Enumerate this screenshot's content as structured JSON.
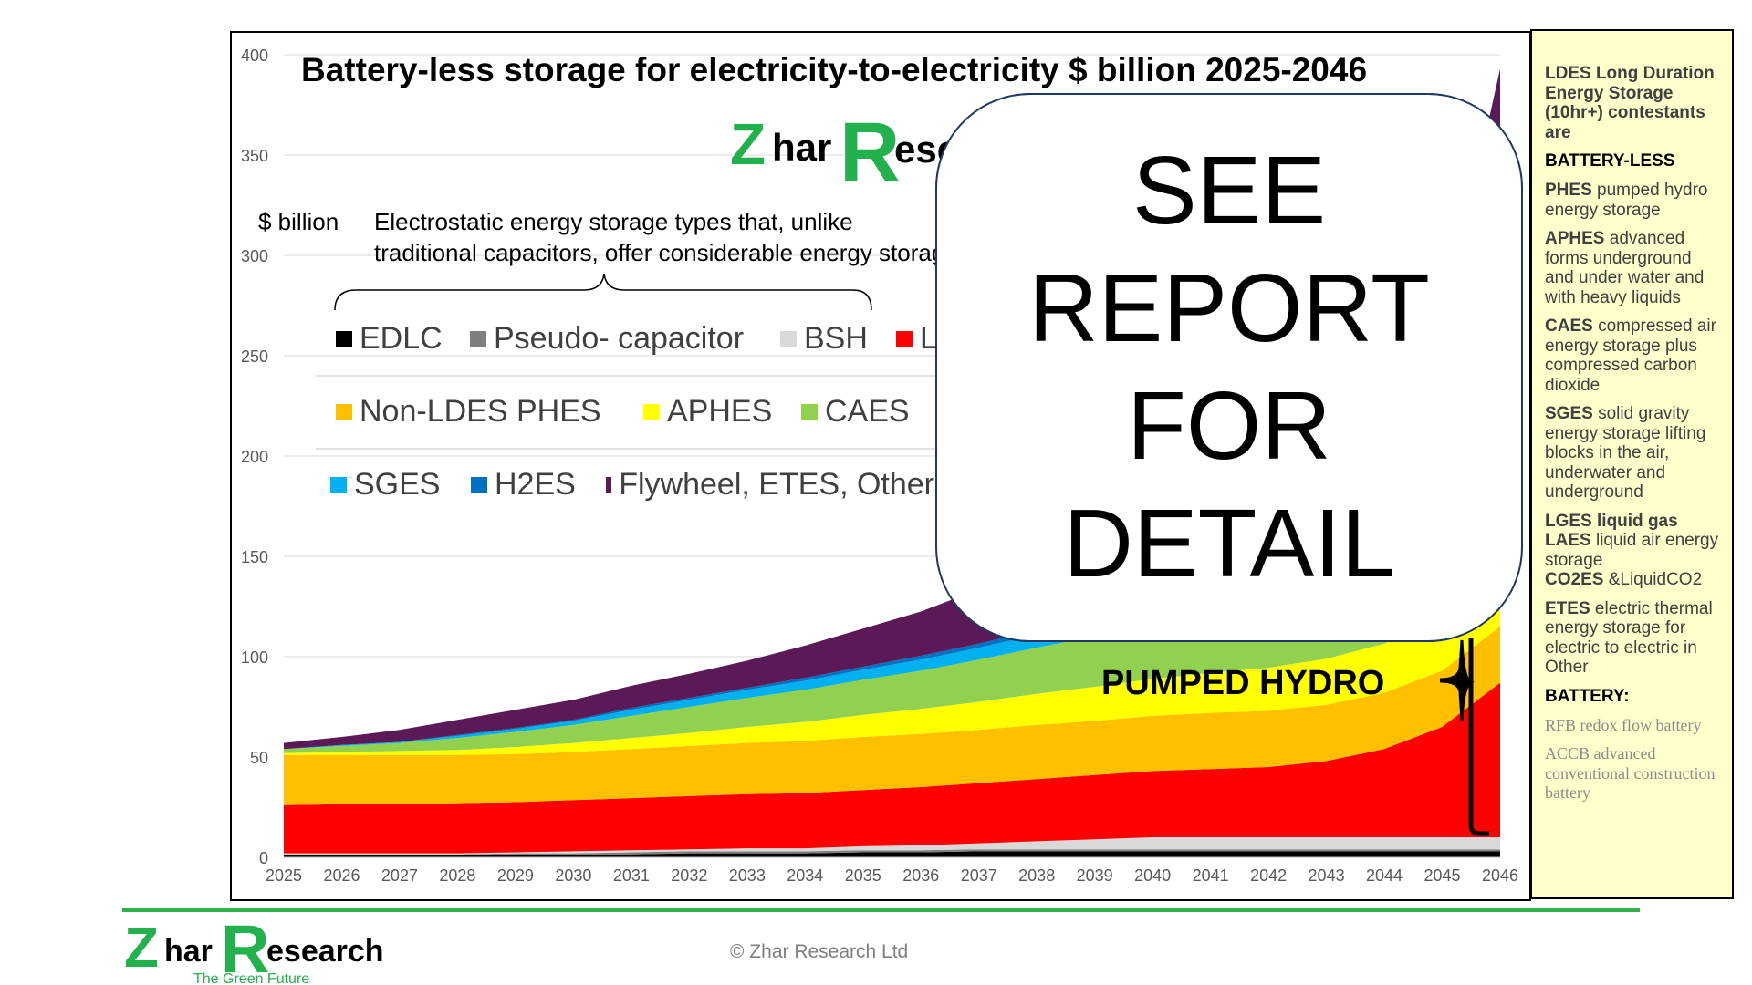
{
  "chart_data": {
    "type": "area",
    "title": "Battery-less storage for electricity-to-electricity $ billion 2025-2046",
    "ylabel": "$ billion",
    "ylim": [
      0,
      400
    ],
    "yticks": [
      0,
      50,
      100,
      150,
      200,
      250,
      300,
      350,
      400
    ],
    "x": [
      "2025",
      "2026",
      "2027",
      "2028",
      "2029",
      "2030",
      "2031",
      "2032",
      "2033",
      "2034",
      "2035",
      "2036",
      "2037",
      "2038",
      "2039",
      "2040",
      "2041",
      "2042",
      "2043",
      "2044",
      "2045",
      "2046"
    ],
    "stacked": true,
    "series": [
      {
        "name": "EDLC",
        "color": "#000000",
        "values": [
          1,
          1,
          1,
          1,
          1.5,
          1.5,
          1.5,
          2,
          2,
          2,
          2.5,
          2.5,
          3,
          3,
          3,
          3,
          3,
          3,
          3,
          3,
          3,
          3
        ]
      },
      {
        "name": "Pseudo- capacitor",
        "color": "#7f7f7f",
        "values": [
          0.5,
          0.5,
          0.5,
          0.5,
          0.5,
          0.5,
          1,
          1,
          1,
          1,
          1,
          1,
          1,
          1,
          1,
          1,
          1,
          1,
          1,
          1,
          1,
          1
        ]
      },
      {
        "name": "BSH",
        "color": "#d9d9d9",
        "values": [
          0.5,
          0.5,
          0.5,
          0.5,
          0.5,
          1,
          1,
          1,
          1.5,
          1.5,
          2,
          2.5,
          3,
          4,
          5,
          6,
          6,
          6,
          6,
          6,
          6,
          6
        ]
      },
      {
        "name": "Li",
        "color": "#ff0000",
        "values": [
          24,
          24.5,
          24.5,
          25,
          25,
          25.5,
          26,
          26.5,
          27,
          27.5,
          28,
          29,
          30,
          31,
          32,
          33,
          34,
          35,
          38,
          44,
          55,
          77
        ]
      },
      {
        "name": "Non-LDES PHES",
        "color": "#ffc000",
        "values": [
          25,
          24.5,
          24.5,
          24,
          24,
          24,
          24.5,
          25,
          25.5,
          26,
          26.5,
          26.5,
          26.5,
          27,
          27,
          27.5,
          28,
          28,
          28,
          28,
          28,
          28
        ]
      },
      {
        "name": "APHES",
        "color": "#ffff00",
        "values": [
          1,
          1.5,
          2,
          2.5,
          3.5,
          4.5,
          5.5,
          6.5,
          8,
          9.5,
          11,
          12.5,
          14,
          15.5,
          17,
          18.5,
          20,
          21.5,
          23,
          24.5,
          26,
          28
        ]
      },
      {
        "name": "CAES",
        "color": "#92d050",
        "values": [
          2,
          3,
          4,
          6,
          7.5,
          9,
          11,
          13,
          14.5,
          16,
          17.5,
          19,
          21,
          23,
          25,
          27,
          29,
          31,
          33,
          35,
          37,
          39
        ]
      },
      {
        "name": "SGES",
        "color": "#00b0f0",
        "values": [
          0,
          0.5,
          0.5,
          1,
          1.5,
          2,
          3,
          3.5,
          4,
          4.5,
          5,
          5.5,
          6,
          6.5,
          7,
          7.5,
          8,
          8.5,
          9,
          9.5,
          10,
          10.5
        ]
      },
      {
        "name": "H2ES",
        "color": "#0070c0",
        "values": [
          0,
          0,
          0,
          0.5,
          0.5,
          0.5,
          1,
          1,
          1,
          1.5,
          1.5,
          2,
          2,
          2.5,
          2.5,
          3,
          3,
          3.5,
          3.5,
          4,
          4,
          4.5
        ]
      },
      {
        "name": "Flywheel, ETES, Other",
        "color": "#5b1a57",
        "values": [
          3,
          4,
          6,
          7.5,
          9,
          10,
          11,
          12,
          13.5,
          16,
          19,
          22,
          27,
          35,
          42,
          48,
          56,
          63,
          72,
          82,
          93,
          196
        ]
      }
    ],
    "legend": {
      "placement": "top-left",
      "note": "Electrostatic energy storage types that, unlike traditional capacitors, offer considerable energy storage"
    },
    "annotations": [
      "PUMPED HYDRO"
    ],
    "grid": true
  },
  "overlay": {
    "text": "SEE\nREPORT\nFOR\nDETAIL"
  },
  "unit_label": "$ billion",
  "brace_note": "Electrostatic energy storage types that, unlike traditional capacitors, offer considerable energy storage",
  "pumped_hydro_label": "PUMPED HYDRO",
  "logo": {
    "text": "Zhar Research",
    "tagline": "The Green Future",
    "color": "#22b14c"
  },
  "copyright": "© Zhar Research Ltd",
  "sidebar": {
    "intro": "LDES Long Duration Energy Storage (10hr+) contestants are",
    "battery_less_heading": "BATTERY-LESS",
    "items": [
      {
        "abbr": "PHES",
        "desc": " pumped hydro energy storage"
      },
      {
        "abbr": "APHES",
        "desc": " advanced forms underground and under water and with heavy liquids"
      },
      {
        "abbr": "CAES",
        "desc": " compressed air energy storage plus compressed carbon dioxide"
      },
      {
        "abbr": "SGES",
        "desc": " solid gravity energy storage lifting blocks in the air, underwater and underground"
      }
    ],
    "lges_abbr": "LGES liquid gas",
    "laes_abbr": "LAES",
    "laes_desc": " liquid air energy storage",
    "co2es_abbr": "CO2ES",
    "co2es_desc": " &LiquidCO2",
    "etes_abbr": "ETES",
    "etes_desc": "  electric thermal energy storage for electric to electric in Other",
    "battery_heading": "BATTERY:",
    "rfb": "RFB redox flow battery",
    "accb": "ACCB  advanced conventional construction battery"
  }
}
